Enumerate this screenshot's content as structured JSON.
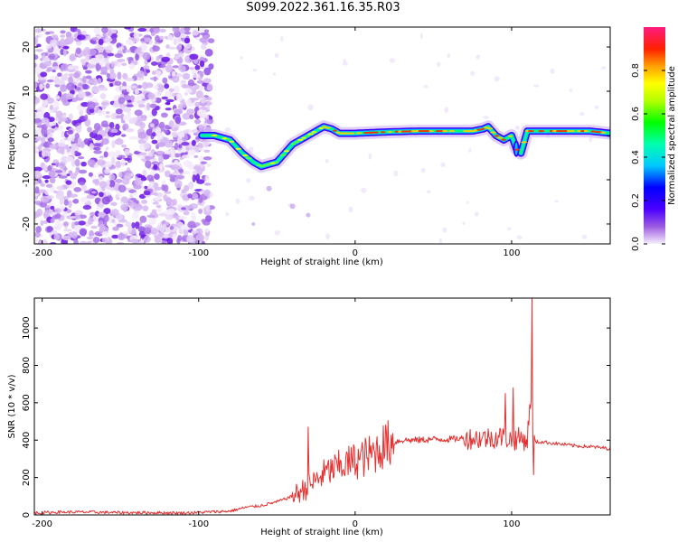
{
  "figure": {
    "title": "S099.2022.361.16.35.R03"
  },
  "colors": {
    "snr_line": "#e53030",
    "axes": "#000000",
    "background": "#ffffff"
  },
  "chart_data": [
    {
      "type": "heatmap",
      "title": "",
      "xlabel": "Height of straight line (km)",
      "ylabel": "Frequency (Hz)",
      "xlim": [
        -205,
        163
      ],
      "ylim": [
        -24.5,
        24.5
      ],
      "xticks": [
        -200,
        -100,
        0,
        100
      ],
      "yticks": [
        -20,
        -10,
        0,
        10,
        20
      ],
      "colormap": "rainbow (purple low, red/magenta high)",
      "colorbar": {
        "label": "Normalized spectral amplitude",
        "range": [
          0.0,
          1.0
        ],
        "ticks": [
          "0.0",
          "0.2",
          "0.4",
          "0.6",
          "0.8"
        ]
      },
      "noise_region": {
        "x_range": [
          -205,
          -92
        ],
        "y_range": [
          -24.5,
          24.5
        ]
      },
      "ridge": {
        "x": [
          -100,
          -90,
          -80,
          -72,
          -65,
          -60,
          -55,
          -50,
          -45,
          -40,
          -35,
          -30,
          -25,
          -20,
          -15,
          -10,
          0,
          20,
          40,
          60,
          75,
          82,
          85,
          90,
          95,
          100,
          103,
          106,
          110,
          130,
          150,
          163
        ],
        "freq": [
          0,
          0,
          -1,
          -4,
          -6,
          -7,
          -6.5,
          -6,
          -4,
          -2,
          -1,
          0,
          1,
          2,
          1.5,
          0.5,
          0.5,
          0.8,
          1,
          1,
          1,
          1.5,
          2,
          0,
          -1,
          0,
          -3,
          -4,
          1,
          1,
          1,
          0.5
        ]
      },
      "grid": false,
      "legend": "none"
    },
    {
      "type": "line",
      "title": "",
      "xlabel": "Height of straight line (km)",
      "ylabel": "SNR (10 * v/v)",
      "xlim": [
        -205,
        163
      ],
      "ylim": [
        0,
        1160
      ],
      "xticks": [
        -200,
        -100,
        0,
        100
      ],
      "yticks": [
        0,
        200,
        400,
        600,
        800,
        1000
      ],
      "series": [
        {
          "x": [
            -205,
            -190,
            -170,
            -150,
            -130,
            -110,
            -95,
            -80,
            -70,
            -60,
            -50,
            -40,
            -30,
            -20,
            -10,
            0,
            10,
            20,
            30,
            40,
            50,
            60,
            70,
            80,
            90,
            95,
            100,
            105,
            110,
            112,
            114,
            116,
            120,
            130,
            140,
            150,
            163
          ],
          "y": [
            10,
            15,
            15,
            12,
            12,
            10,
            15,
            20,
            40,
            50,
            70,
            100,
            150,
            220,
            260,
            290,
            320,
            380,
            400,
            400,
            405,
            405,
            410,
            410,
            415,
            420,
            400,
            410,
            400,
            620,
            400,
            390,
            390,
            380,
            370,
            365,
            355
          ]
        }
      ],
      "spikes": [
        {
          "x": -30,
          "y": 470
        },
        {
          "x": 96,
          "y": 650
        },
        {
          "x": 101,
          "y": 680
        },
        {
          "x": 113,
          "y": 1160
        },
        {
          "x": 114,
          "y": 215
        }
      ],
      "grid": false,
      "legend": "none"
    }
  ]
}
